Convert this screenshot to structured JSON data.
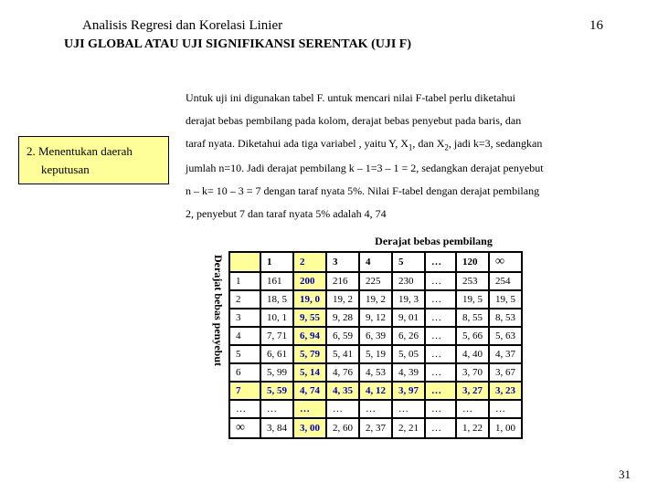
{
  "header": {
    "title": "Analisis Regresi dan Korelasi Linier",
    "page": "16"
  },
  "subtitle": "UJI GLOBAL ATAU UJI SIGNIFIKANSI SERENTAK (UJI F)",
  "step": {
    "num": "2. Menentukan daerah",
    "label": "keputusan"
  },
  "body": {
    "l1": "Untuk uji ini digunakan tabel F. untuk mencari nilai F-tabel perlu diketahui",
    "l2": "derajat bebas pembilang pada kolom, derajat bebas penyebut pada baris, dan",
    "l3a": "taraf nyata. Diketahui ada tiga variabel , yaitu Y, X",
    "l3sub1": "1",
    "l3b": ", dan X",
    "l3sub2": "2",
    "l3c": ", jadi k=3, sedangkan",
    "l4": "jumlah n=10. Jadi derajat pembilang k – 1=3 – 1 = 2, sedangkan derajat penyebut",
    "l5": "n – k= 10 – 3 = 7 dengan taraf nyata 5%. Nilai F-tabel dengan derajat pembilang",
    "l6": "2, penyebut 7 dan taraf nyata 5% adalah 4, 74"
  },
  "table": {
    "top_caption": "Derajat bebas pembilang",
    "side_caption": "Derajat bebas penyebut",
    "cols": [
      "1",
      "2",
      "3",
      "4",
      "5",
      "…",
      "120",
      "∞"
    ],
    "rows": [
      {
        "h": "1",
        "c": [
          "161",
          "200",
          "216",
          "225",
          "230",
          "…",
          "253",
          "254"
        ]
      },
      {
        "h": "2",
        "c": [
          "18, 5",
          "19, 0",
          "19, 2",
          "19, 2",
          "19, 3",
          "…",
          "19, 5",
          "19, 5"
        ]
      },
      {
        "h": "3",
        "c": [
          "10, 1",
          "9, 55",
          "9, 28",
          "9, 12",
          "9, 01",
          "…",
          "8, 55",
          "8, 53"
        ]
      },
      {
        "h": "4",
        "c": [
          "7, 71",
          "6, 94",
          "6, 59",
          "6, 39",
          "6, 26",
          "…",
          "5, 66",
          "5, 63"
        ]
      },
      {
        "h": "5",
        "c": [
          "6, 61",
          "5, 79",
          "5, 41",
          "5, 19",
          "5, 05",
          "…",
          "4, 40",
          "4, 37"
        ]
      },
      {
        "h": "6",
        "c": [
          "5, 99",
          "5, 14",
          "4, 76",
          "4, 53",
          "4, 39",
          "…",
          "3, 70",
          "3, 67"
        ]
      },
      {
        "h": "7",
        "c": [
          "5, 59",
          "4, 74",
          "4, 35",
          "4, 12",
          "3, 97",
          "…",
          "3, 27",
          "3, 23"
        ]
      },
      {
        "h": "…",
        "c": [
          "…",
          "…",
          "…",
          "…",
          "…",
          "…",
          "…",
          "…"
        ]
      },
      {
        "h": "∞",
        "c": [
          "3, 84",
          "3, 00",
          "2, 60",
          "2, 37",
          "2, 21",
          "…",
          "1, 22",
          "1, 00"
        ]
      }
    ],
    "hl_cols": [
      1
    ],
    "hl_rows": [
      6
    ],
    "colors": {
      "hl_bg": "#ffff99",
      "blue": "#0000cc",
      "border": "#000000"
    }
  },
  "footer": "31"
}
